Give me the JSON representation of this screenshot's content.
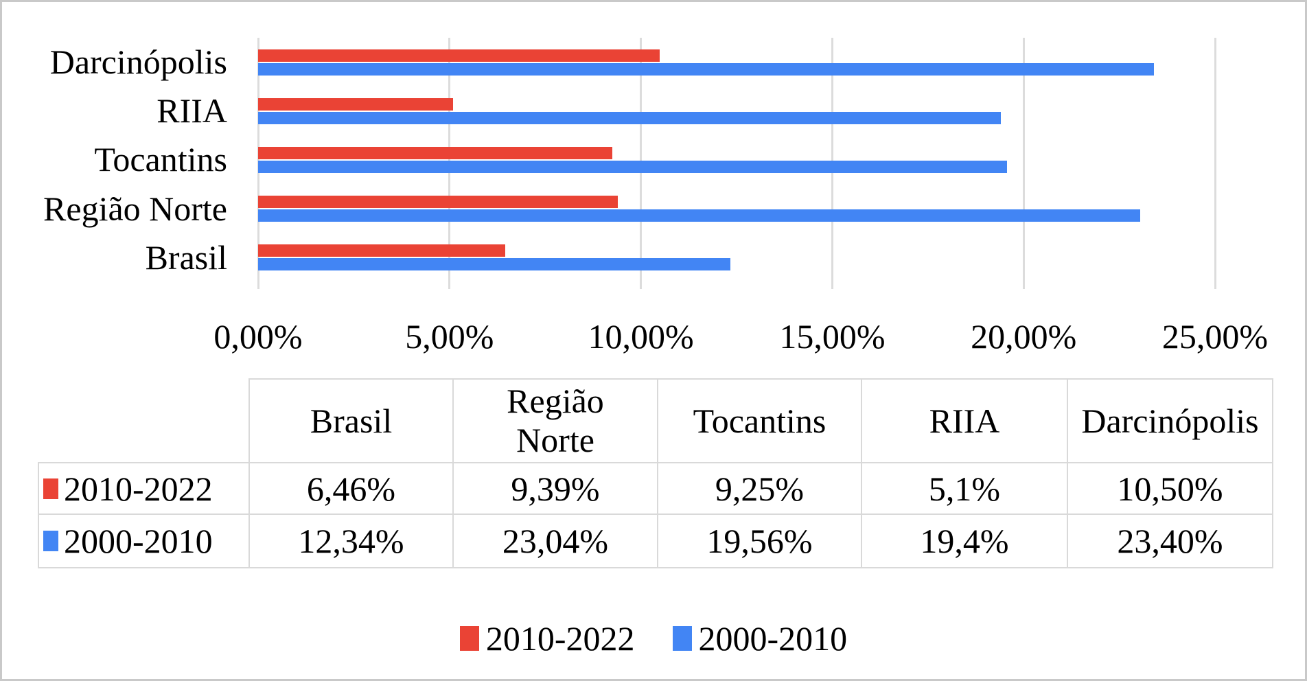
{
  "chart_data": {
    "type": "bar",
    "orientation": "horizontal",
    "title": "",
    "xlabel": "",
    "ylabel": "",
    "categories": [
      "Darcinópolis",
      "RIIA",
      "Tocantins",
      "Região Norte",
      "Brasil"
    ],
    "series": [
      {
        "name": "2010-2022",
        "color": "#ea4335",
        "values": [
          10.5,
          5.1,
          9.25,
          9.39,
          6.46
        ]
      },
      {
        "name": "2000-2010",
        "color": "#4285f4",
        "values": [
          23.4,
          19.4,
          19.56,
          23.04,
          12.34
        ]
      }
    ],
    "xlim": [
      0,
      25.5
    ],
    "x_ticks": [
      {
        "value": 0,
        "label": "0,00%"
      },
      {
        "value": 5,
        "label": "5,00%"
      },
      {
        "value": 10,
        "label": "10,00%"
      },
      {
        "value": 15,
        "label": "15,00%"
      },
      {
        "value": 20,
        "label": "20,00%"
      },
      {
        "value": 25,
        "label": "25,00%"
      }
    ],
    "grid": true,
    "legend_position": "bottom"
  },
  "table": {
    "corner": "",
    "headers": [
      "Brasil",
      "Região\nNorte",
      "Tocantins",
      "RIIA",
      "Darcinópolis"
    ],
    "rows": [
      {
        "label": "2010-2022",
        "swatch_color": "#ea4335",
        "values": [
          "6,46%",
          "9,39%",
          "9,25%",
          "5,1%",
          "10,50%"
        ]
      },
      {
        "label": "2000-2010",
        "swatch_color": "#4285f4",
        "values": [
          "12,34%",
          "23,04%",
          "19,56%",
          "19,4%",
          "23,40%"
        ]
      }
    ]
  },
  "legend": {
    "items": [
      {
        "label": "2010-2022",
        "color": "#ea4335"
      },
      {
        "label": "2000-2010",
        "color": "#4285f4"
      }
    ]
  },
  "colors": {
    "series_red": "#ea4335",
    "series_blue": "#4285f4",
    "gridline": "#dcdcdc",
    "table_border": "#d9d9d9",
    "frame_border": "#c9c9c9",
    "background": "#ffffff",
    "text": "#000000"
  }
}
